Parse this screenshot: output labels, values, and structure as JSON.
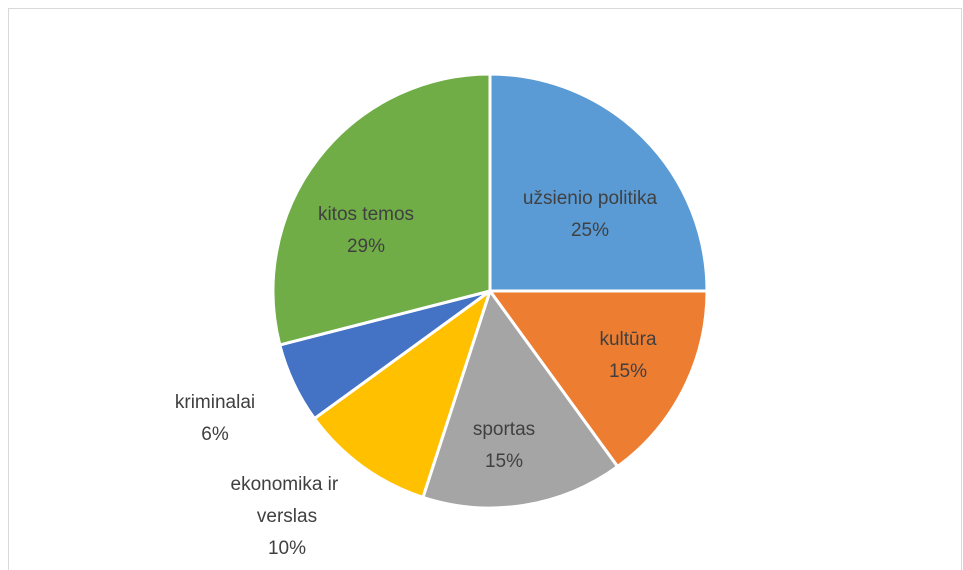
{
  "chart_data": {
    "type": "pie",
    "categories": [
      "užsienio politika",
      "kultūra",
      "sportas",
      "ekonomika ir verslas",
      "kriminalai",
      "kitos temos"
    ],
    "values": [
      25,
      15,
      15,
      10,
      6,
      29
    ],
    "value_labels": [
      "25%",
      "15%",
      "15%",
      "10%",
      "6%",
      "29%"
    ],
    "colors": [
      "#5B9BD5",
      "#ED7D31",
      "#A5A5A5",
      "#FFC000",
      "#4472C4",
      "#70AD47"
    ]
  }
}
